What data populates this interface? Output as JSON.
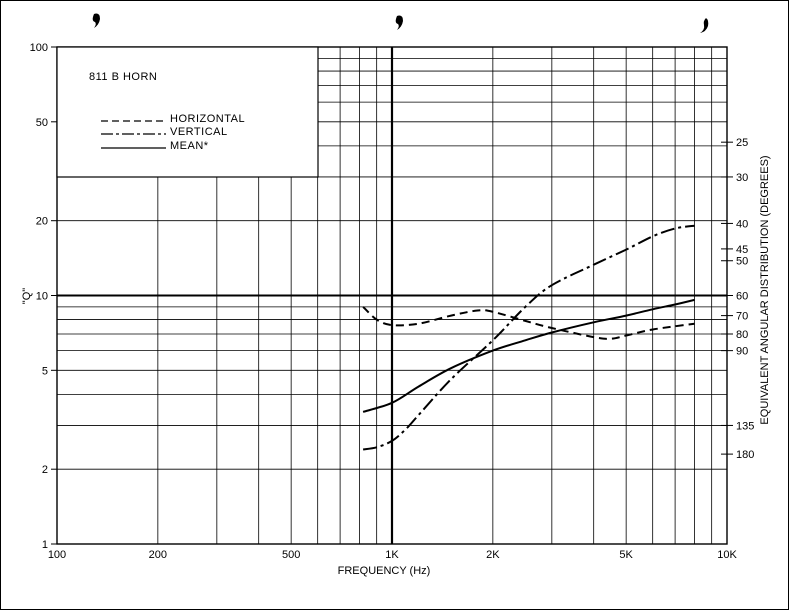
{
  "chart_data": {
    "type": "line",
    "title": "811 B HORN",
    "xlabel": "FREQUENCY (Hz)",
    "ylabel": "\"Q\"",
    "y2label": "EQUIVALENT ANGULAR DISTRIBUTION (DEGREES)",
    "x_scale": "log",
    "y_scale": "log",
    "xlim": [
      100,
      10000
    ],
    "ylim": [
      1,
      100
    ],
    "grid": true,
    "legend_position": "top-left",
    "x_ticks": [
      {
        "value": 100,
        "label": "100"
      },
      {
        "value": 200,
        "label": "200"
      },
      {
        "value": 500,
        "label": "500"
      },
      {
        "value": 1000,
        "label": "1K"
      },
      {
        "value": 2000,
        "label": "2K"
      },
      {
        "value": 5000,
        "label": "5K"
      },
      {
        "value": 10000,
        "label": "10K"
      }
    ],
    "y_ticks": [
      {
        "value": 1,
        "label": "1"
      },
      {
        "value": 2,
        "label": "2"
      },
      {
        "value": 5,
        "label": "5"
      },
      {
        "value": 10,
        "label": "10"
      },
      {
        "value": 20,
        "label": "20"
      },
      {
        "value": 50,
        "label": "50"
      },
      {
        "value": 100,
        "label": "100"
      }
    ],
    "y2_ticks": [
      {
        "q": 41.4,
        "label": "25"
      },
      {
        "q": 30.0,
        "label": "30"
      },
      {
        "q": 19.5,
        "label": "40"
      },
      {
        "q": 15.4,
        "label": "45"
      },
      {
        "q": 13.8,
        "label": "50"
      },
      {
        "q": 10.0,
        "label": "60"
      },
      {
        "q": 8.3,
        "label": "70"
      },
      {
        "q": 7.0,
        "label": "80"
      },
      {
        "q": 6.0,
        "label": "90"
      },
      {
        "q": 3.0,
        "label": "135"
      },
      {
        "q": 2.3,
        "label": "180"
      }
    ],
    "series": [
      {
        "name": "HORIZONTAL",
        "style": "dashed",
        "points": [
          [
            820,
            9.0
          ],
          [
            900,
            8.0
          ],
          [
            1000,
            7.6
          ],
          [
            1200,
            7.7
          ],
          [
            1500,
            8.3
          ],
          [
            1800,
            8.7
          ],
          [
            2000,
            8.6
          ],
          [
            2500,
            7.9
          ],
          [
            3000,
            7.4
          ],
          [
            4000,
            6.8
          ],
          [
            4500,
            6.7
          ],
          [
            5000,
            6.9
          ],
          [
            6000,
            7.3
          ],
          [
            8000,
            7.7
          ]
        ]
      },
      {
        "name": "VERTICAL",
        "style": "dash-dot",
        "points": [
          [
            820,
            2.4
          ],
          [
            900,
            2.45
          ],
          [
            1000,
            2.6
          ],
          [
            1100,
            2.9
          ],
          [
            1200,
            3.3
          ],
          [
            1500,
            4.6
          ],
          [
            2000,
            6.6
          ],
          [
            2500,
            9.0
          ],
          [
            3000,
            11.0
          ],
          [
            4000,
            13.3
          ],
          [
            5000,
            15.3
          ],
          [
            6000,
            17.3
          ],
          [
            7000,
            18.6
          ],
          [
            8000,
            19.1
          ]
        ]
      },
      {
        "name": "MEAN*",
        "style": "solid",
        "points": [
          [
            820,
            3.4
          ],
          [
            1000,
            3.7
          ],
          [
            1200,
            4.3
          ],
          [
            1500,
            5.1
          ],
          [
            2000,
            6.0
          ],
          [
            2500,
            6.6
          ],
          [
            3000,
            7.1
          ],
          [
            4000,
            7.8
          ],
          [
            5000,
            8.3
          ],
          [
            6000,
            8.8
          ],
          [
            7000,
            9.2
          ],
          [
            8000,
            9.6
          ]
        ]
      }
    ],
    "reference_line": {
      "value": 10
    }
  }
}
